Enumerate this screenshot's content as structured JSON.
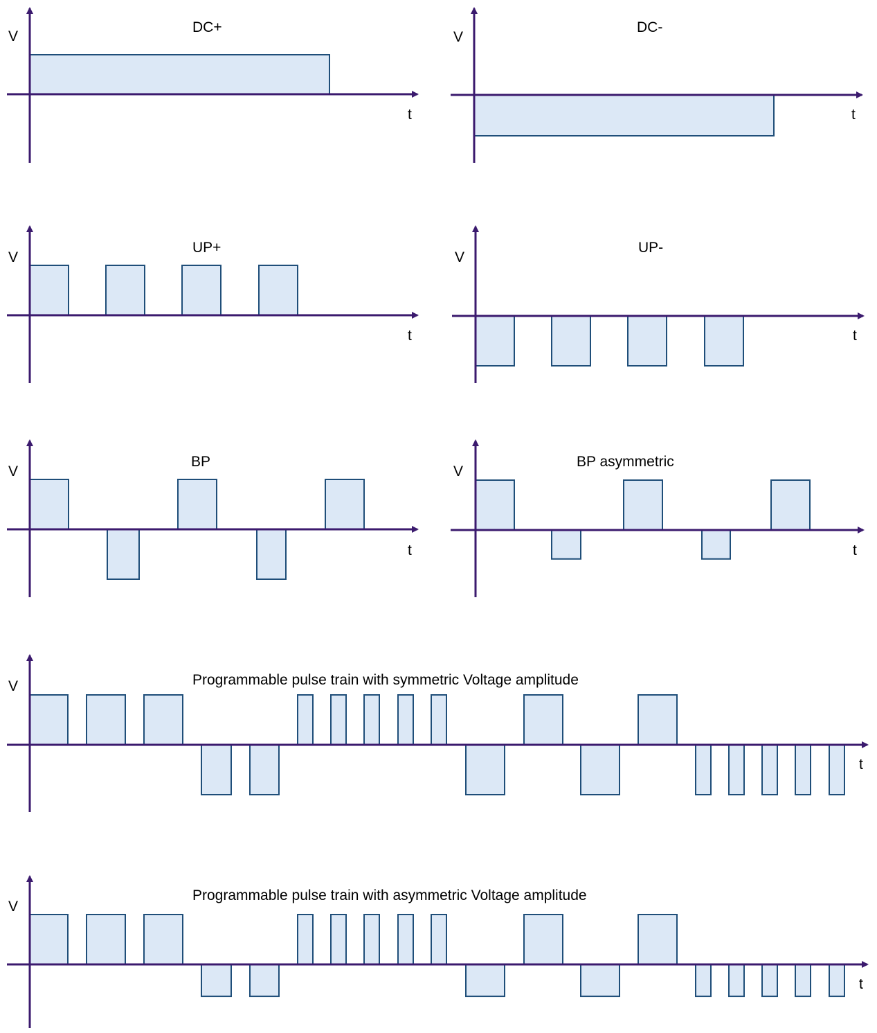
{
  "colors": {
    "axis": "#3b1a6e",
    "pulse_fill": "#dce8f6",
    "pulse_stroke": "#1f4e79",
    "text": "#000000"
  },
  "diagrams": [
    {
      "id": "dc-plus",
      "title": "DC+",
      "y_label": "V",
      "x_label": "t",
      "pulses": [
        {
          "start": 0,
          "end": 433,
          "level": 1
        }
      ]
    },
    {
      "id": "dc-minus",
      "title": "DC-",
      "y_label": "V",
      "x_label": "t",
      "pulses": [
        {
          "start": 0,
          "end": 433,
          "level": -1
        }
      ]
    },
    {
      "id": "up-plus",
      "title": "UP+",
      "y_label": "V",
      "x_label": "t",
      "pulses": [
        {
          "start": 0,
          "end": 56,
          "level": 1
        },
        {
          "start": 110,
          "end": 166,
          "level": 1
        },
        {
          "start": 220,
          "end": 276,
          "level": 1
        },
        {
          "start": 331,
          "end": 387,
          "level": 1
        }
      ]
    },
    {
      "id": "up-minus",
      "title": "UP-",
      "y_label": "V",
      "x_label": "t",
      "pulses": [
        {
          "start": 0,
          "end": 56,
          "level": -1
        },
        {
          "start": 110,
          "end": 166,
          "level": -1
        },
        {
          "start": 220,
          "end": 276,
          "level": -1
        },
        {
          "start": 331,
          "end": 387,
          "level": -1
        }
      ]
    },
    {
      "id": "bp",
      "title": "BP",
      "y_label": "V",
      "x_label": "t",
      "pulses": [
        {
          "start": 0,
          "end": 56,
          "level": 1
        },
        {
          "start": 112,
          "end": 158,
          "level": -1
        },
        {
          "start": 214,
          "end": 270,
          "level": 1
        },
        {
          "start": 328,
          "end": 370,
          "level": -1
        },
        {
          "start": 427,
          "end": 483,
          "level": 1
        }
      ]
    },
    {
      "id": "bp-asym",
      "title": "BP asymmetric",
      "y_label": "V",
      "x_label": "t",
      "pulses": [
        {
          "start": 0,
          "end": 56,
          "level": 1
        },
        {
          "start": 110,
          "end": 152,
          "level": -0.58
        },
        {
          "start": 214,
          "end": 270,
          "level": 1
        },
        {
          "start": 327,
          "end": 368,
          "level": -0.58
        },
        {
          "start": 427,
          "end": 483,
          "level": 1
        }
      ]
    },
    {
      "id": "prog-sym",
      "title": "Programmable pulse train with symmetric Voltage amplitude",
      "y_label": "V",
      "x_label": "t",
      "pulses": [
        {
          "start": 0,
          "end": 55,
          "level": 1
        },
        {
          "start": 82,
          "end": 138,
          "level": 1
        },
        {
          "start": 165,
          "end": 221,
          "level": 1
        },
        {
          "start": 248,
          "end": 291,
          "level": -1
        },
        {
          "start": 318,
          "end": 360,
          "level": -1
        },
        {
          "start": 387,
          "end": 409,
          "level": 1
        },
        {
          "start": 435,
          "end": 457,
          "level": 1
        },
        {
          "start": 483,
          "end": 505,
          "level": 1
        },
        {
          "start": 532,
          "end": 554,
          "level": 1
        },
        {
          "start": 580,
          "end": 602,
          "level": 1
        },
        {
          "start": 630,
          "end": 686,
          "level": -1
        },
        {
          "start": 714,
          "end": 770,
          "level": 1
        },
        {
          "start": 796,
          "end": 852,
          "level": -1
        },
        {
          "start": 879,
          "end": 935,
          "level": 1
        },
        {
          "start": 962,
          "end": 984,
          "level": -1
        },
        {
          "start": 1010,
          "end": 1032,
          "level": -1
        },
        {
          "start": 1058,
          "end": 1080,
          "level": -1
        },
        {
          "start": 1106,
          "end": 1128,
          "level": -1
        },
        {
          "start": 1155,
          "end": 1177,
          "level": -1
        }
      ]
    },
    {
      "id": "prog-asym",
      "title": "Programmable pulse train with asymmetric Voltage amplitude",
      "y_label": "V",
      "x_label": "t",
      "pulses": [
        {
          "start": 0,
          "end": 55,
          "level": 1
        },
        {
          "start": 82,
          "end": 138,
          "level": 1
        },
        {
          "start": 165,
          "end": 221,
          "level": 1
        },
        {
          "start": 248,
          "end": 291,
          "level": -0.64
        },
        {
          "start": 318,
          "end": 360,
          "level": -0.64
        },
        {
          "start": 387,
          "end": 409,
          "level": 1
        },
        {
          "start": 435,
          "end": 457,
          "level": 1
        },
        {
          "start": 483,
          "end": 505,
          "level": 1
        },
        {
          "start": 532,
          "end": 554,
          "level": 1
        },
        {
          "start": 580,
          "end": 602,
          "level": 1
        },
        {
          "start": 630,
          "end": 686,
          "level": -0.64
        },
        {
          "start": 714,
          "end": 770,
          "level": 1
        },
        {
          "start": 796,
          "end": 852,
          "level": -0.64
        },
        {
          "start": 879,
          "end": 935,
          "level": 1
        },
        {
          "start": 962,
          "end": 984,
          "level": -0.64
        },
        {
          "start": 1010,
          "end": 1032,
          "level": -0.64
        },
        {
          "start": 1058,
          "end": 1080,
          "level": -0.64
        },
        {
          "start": 1106,
          "end": 1128,
          "level": -0.64
        },
        {
          "start": 1155,
          "end": 1177,
          "level": -0.64
        }
      ]
    }
  ]
}
